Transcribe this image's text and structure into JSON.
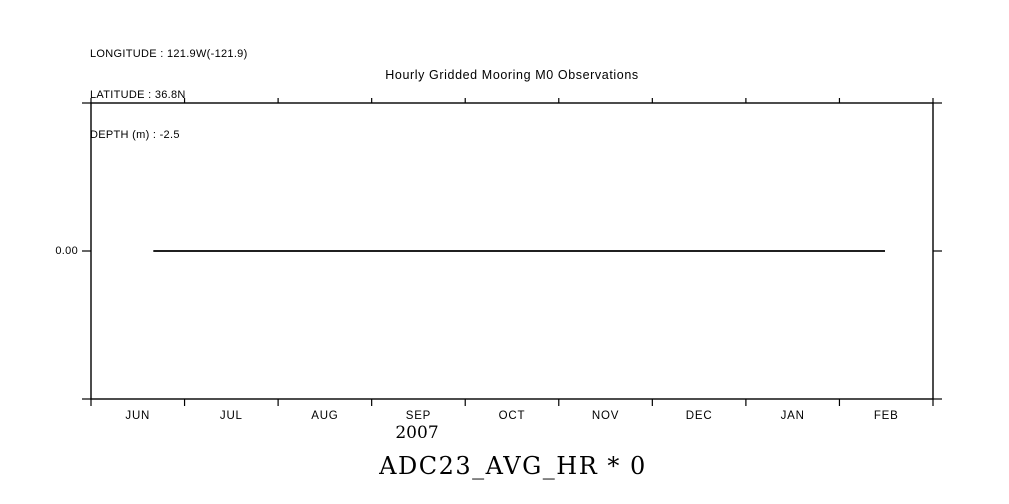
{
  "page": {
    "background": "#ffffff",
    "foreground": "#000000"
  },
  "header_info": {
    "longitude": "LONGITUDE : 121.9W(-121.9)",
    "latitude": "LATITUDE : 36.8N",
    "depth": "DEPTH (m) : -2.5"
  },
  "chart_data": {
    "type": "line",
    "title": "Hourly Gridded Mooring M0 Observations",
    "footer_label": "ADC23_AVG_HR * 0",
    "grid": false,
    "frame": true,
    "legend": "none",
    "x_axis": {
      "tick_labels": [
        "JUN",
        "JUL",
        "AUG",
        "SEP",
        "OCT",
        "NOV",
        "DEC",
        "JAN",
        "FEB"
      ],
      "year_label": "2007",
      "range_start": "2007-06-01",
      "range_end": "2008-03-01",
      "boundary_ticks": 10
    },
    "y_axis": {
      "tick_labels": [
        "0.00"
      ],
      "tick_fracs": [
        0.5
      ],
      "edge_tick_fracs": [
        0,
        1
      ]
    },
    "series": [
      {
        "name": "ADC23_AVG_HR * 0",
        "constant_value": 0.0,
        "x_start_frac": 0.074,
        "x_end_frac": 0.943,
        "points": [
          {
            "x": "2007-06-21 (approx)",
            "y": 0.0
          },
          {
            "x": "2008-02-15 (approx)",
            "y": 0.0
          }
        ]
      }
    ]
  }
}
